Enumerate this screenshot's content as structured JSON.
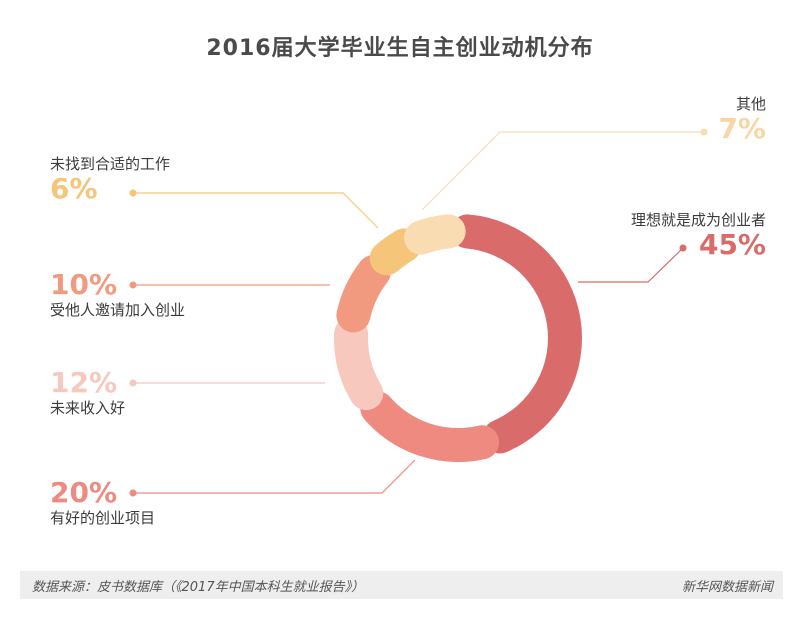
{
  "title": "2016届大学毕业生自主创业动机分布",
  "chart_data": {
    "type": "pie",
    "title": "2016届大学毕业生自主创业动机分布",
    "slices": [
      {
        "label": "理想就是成为创业者",
        "value": 45,
        "display": "45%",
        "color": "#d96b6b"
      },
      {
        "label": "有好的创业项目",
        "value": 20,
        "display": "20%",
        "color": "#ee8a80"
      },
      {
        "label": "未来收入好",
        "value": 12,
        "display": "12%",
        "color": "#f7c8bd"
      },
      {
        "label": "受他人邀请加入创业",
        "value": 10,
        "display": "10%",
        "color": "#f19a7f"
      },
      {
        "label": "未找到合适的工作",
        "value": 6,
        "display": "6%",
        "color": "#f5c57a"
      },
      {
        "label": "其他",
        "value": 7,
        "display": "7%",
        "color": "#f9dcb2"
      }
    ]
  },
  "footer": {
    "source": "数据来源：皮书数据库（《2017年中国本科生就业报告》）",
    "brand": "新华网数据新闻"
  }
}
